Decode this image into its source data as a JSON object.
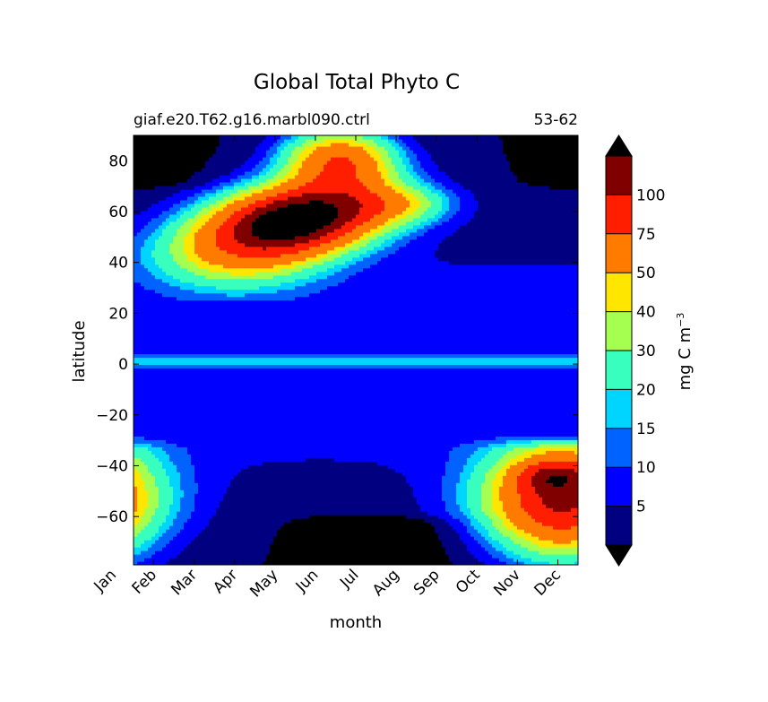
{
  "chart_data": {
    "type": "heatmap",
    "title": "Global Total Phyto C",
    "subtitle_left": "giaf.e20.T62.g16.marbl090.ctrl",
    "subtitle_right": "53-62",
    "xlabel": "month",
    "ylabel": "latitude",
    "x_ticks": [
      "Jan",
      "Feb",
      "Mar",
      "Apr",
      "May",
      "Jun",
      "Jul",
      "Aug",
      "Sep",
      "Oct",
      "Nov",
      "Dec"
    ],
    "xlim": [
      0.5,
      11.5
    ],
    "ylim": [
      -79,
      90
    ],
    "y_ticks": [
      -60,
      -40,
      -20,
      0,
      20,
      40,
      60,
      80
    ],
    "y_tick_labels": [
      "−60",
      "−40",
      "−20",
      "0",
      "20",
      "40",
      "60",
      "80"
    ],
    "colorbar": {
      "label": "mg C m",
      "label_exponent": "−3",
      "levels": [
        0,
        5,
        10,
        15,
        20,
        30,
        40,
        50,
        75,
        100,
        125
      ],
      "tick_labels": [
        "5",
        "10",
        "15",
        "20",
        "30",
        "40",
        "50",
        "75",
        "100"
      ],
      "colors": [
        "#000080",
        "#0000ff",
        "#0062ff",
        "#00d5ff",
        "#38ffbe",
        "#a5ff51",
        "#ffe600",
        "#ff7b00",
        "#ff1e00",
        "#800000"
      ],
      "under_color": "#000000",
      "over_color": "#000000",
      "extend": "both"
    },
    "field_description": [
      {
        "region": "northern high latitudes",
        "months": "May-Jun",
        "lat_range": [
          45,
          66
        ],
        "peak_value": "over 125"
      },
      {
        "region": "northern bloom band",
        "months": "Mar-Sep",
        "lat_range": [
          28,
          90
        ],
        "value_range": [
          10,
          125
        ]
      },
      {
        "region": "equatorial band",
        "months": "Jan-Dec",
        "lat_range": [
          -1,
          3
        ],
        "value_range": [
          15,
          20
        ]
      },
      {
        "region": "southern bloom",
        "months": "Oct-Feb",
        "lat_range": [
          -78,
          -35
        ],
        "value_range": [
          10,
          100
        ]
      },
      {
        "region": "southern winter polar",
        "months": "May-Oct",
        "lat_range": [
          -79,
          -60
        ],
        "value": "below 0"
      },
      {
        "region": "northern winter polar",
        "months": "Nov-Feb",
        "lat_range": [
          70,
          90
        ],
        "value": "below 0"
      }
    ]
  }
}
